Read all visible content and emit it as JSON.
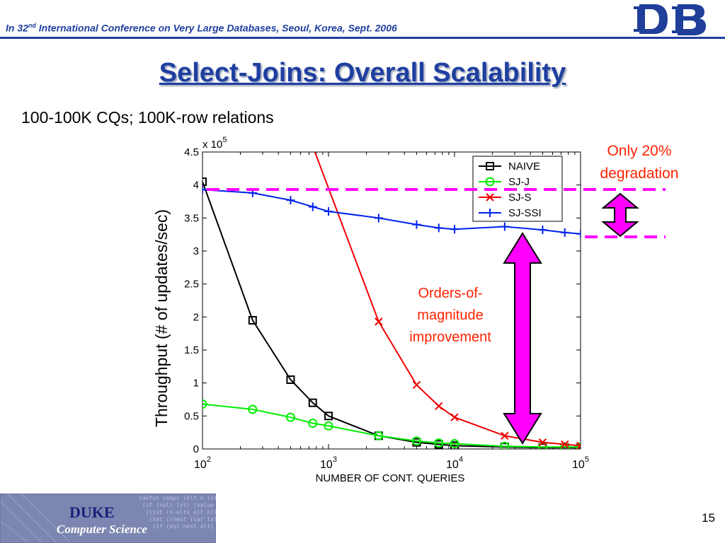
{
  "header": {
    "text_pre": "In 32",
    "text_sup": "nd",
    "text_post": " International Conference on Very Large Databases, Seoul, Korea, Sept. 2006"
  },
  "logo": {
    "icon": "duke-db-logo"
  },
  "slide": {
    "title": "Select-Joins: Overall Scalability",
    "subtitle": "100-100K CQs; 100K-row relations"
  },
  "annotations": {
    "top_note_line1": "Only 20%",
    "top_note_line2": "degradation",
    "mid_note_line1": "Orders-of-",
    "mid_note_line2": "magnitude",
    "mid_note_line3": "improvement",
    "accent_color": "#ff2200",
    "arrow_color": "#ff00ff",
    "dashed_color": "#ff00ff"
  },
  "chart_data": {
    "type": "line",
    "xlabel": "NUMBER OF CONT. QUERIES",
    "ylabel": "Throughput (# of updates/sec)",
    "x_scale": "log",
    "xlim": [
      100,
      100000
    ],
    "ylim": [
      0,
      4.5
    ],
    "y_multiplier": "x 10",
    "y_multiplier_exp": "5",
    "x_ticks": [
      {
        "base": "10",
        "exp": "2"
      },
      {
        "base": "10",
        "exp": "3"
      },
      {
        "base": "10",
        "exp": "4"
      },
      {
        "base": "10",
        "exp": "5"
      }
    ],
    "y_ticks": [
      "0",
      "0.5",
      "1",
      "1.5",
      "2",
      "2.5",
      "3",
      "3.5",
      "4",
      "4.5"
    ],
    "legend_position": "top-right",
    "series": [
      {
        "name": "NAIVE",
        "color": "#000000",
        "marker": "square",
        "x": [
          100,
          250,
          500,
          750,
          1000,
          2500,
          5000,
          7500,
          10000,
          25000,
          50000,
          75000,
          100000
        ],
        "y": [
          4.05,
          1.95,
          1.05,
          0.7,
          0.5,
          0.2,
          0.1,
          0.07,
          0.05,
          0.03,
          0.02,
          0.02,
          0.02
        ]
      },
      {
        "name": "SJ-J",
        "color": "#00ee00",
        "marker": "circle",
        "x": [
          100,
          250,
          500,
          750,
          1000,
          2500,
          5000,
          7500,
          10000,
          25000,
          50000,
          75000,
          100000
        ],
        "y": [
          0.68,
          0.6,
          0.48,
          0.39,
          0.35,
          0.2,
          0.12,
          0.09,
          0.08,
          0.04,
          0.03,
          0.03,
          0.03
        ]
      },
      {
        "name": "SJ-S",
        "color": "#ee0000",
        "marker": "x",
        "x": [
          780,
          2500,
          5000,
          7500,
          10000,
          25000,
          50000,
          75000,
          100000
        ],
        "y": [
          4.5,
          1.93,
          0.97,
          0.65,
          0.48,
          0.2,
          0.1,
          0.07,
          0.05
        ]
      },
      {
        "name": "SJ-SSI",
        "color": "#0022ee",
        "marker": "plus",
        "x": [
          100,
          250,
          500,
          750,
          1000,
          2500,
          5000,
          7500,
          10000,
          25000,
          50000,
          75000,
          100000
        ],
        "y": [
          3.93,
          3.88,
          3.77,
          3.67,
          3.6,
          3.5,
          3.4,
          3.35,
          3.33,
          3.37,
          3.32,
          3.28,
          3.26
        ]
      }
    ]
  },
  "footer": {
    "org_name": "DUKE",
    "dept_name": "Computer Science",
    "page_number": "15"
  }
}
